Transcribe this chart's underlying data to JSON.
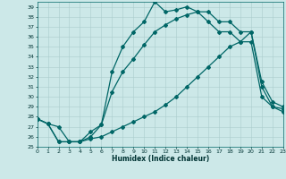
{
  "title": "",
  "xlabel": "Humidex (Indice chaleur)",
  "xlim": [
    0,
    23
  ],
  "ylim": [
    25,
    39.5
  ],
  "yticks": [
    25,
    26,
    27,
    28,
    29,
    30,
    31,
    32,
    33,
    34,
    35,
    36,
    37,
    38,
    39
  ],
  "xticks": [
    0,
    1,
    2,
    3,
    4,
    5,
    6,
    7,
    8,
    9,
    10,
    11,
    12,
    13,
    14,
    15,
    16,
    17,
    18,
    19,
    20,
    21,
    22,
    23
  ],
  "bg_color": "#cce8e8",
  "grid_color": "#aacccc",
  "line_color": "#006666",
  "lw": 0.9,
  "marker": "D",
  "ms": 2.0,
  "series1_x": [
    0,
    1,
    2,
    3,
    4,
    5,
    6,
    7,
    8,
    9,
    10,
    11,
    12,
    13,
    14,
    15,
    16,
    17,
    18,
    19,
    20,
    21,
    22,
    23
  ],
  "series1_y": [
    27.8,
    27.3,
    27.0,
    25.5,
    25.5,
    26.5,
    27.2,
    32.5,
    35.0,
    36.5,
    37.5,
    39.5,
    38.5,
    38.7,
    39.0,
    38.5,
    38.5,
    37.5,
    37.5,
    36.5,
    36.5,
    31.5,
    29.5,
    29.0
  ],
  "series2_x": [
    0,
    1,
    2,
    3,
    4,
    5,
    6,
    7,
    8,
    9,
    10,
    11,
    12,
    13,
    14,
    15,
    16,
    17,
    18,
    19,
    20,
    21,
    22,
    23
  ],
  "series2_y": [
    27.8,
    27.3,
    25.5,
    25.5,
    25.5,
    26.0,
    27.2,
    30.5,
    32.5,
    33.8,
    35.2,
    36.5,
    37.2,
    37.8,
    38.2,
    38.5,
    37.5,
    36.5,
    36.5,
    35.5,
    36.5,
    31.0,
    29.0,
    28.8
  ],
  "series3_x": [
    0,
    1,
    2,
    3,
    4,
    5,
    6,
    7,
    8,
    9,
    10,
    11,
    12,
    13,
    14,
    15,
    16,
    17,
    18,
    19,
    20,
    21,
    22,
    23
  ],
  "series3_y": [
    27.8,
    27.3,
    25.5,
    25.5,
    25.5,
    25.8,
    26.0,
    26.5,
    27.0,
    27.5,
    28.0,
    28.5,
    29.2,
    30.0,
    31.0,
    32.0,
    33.0,
    34.0,
    35.0,
    35.5,
    35.5,
    30.0,
    29.0,
    28.5
  ]
}
